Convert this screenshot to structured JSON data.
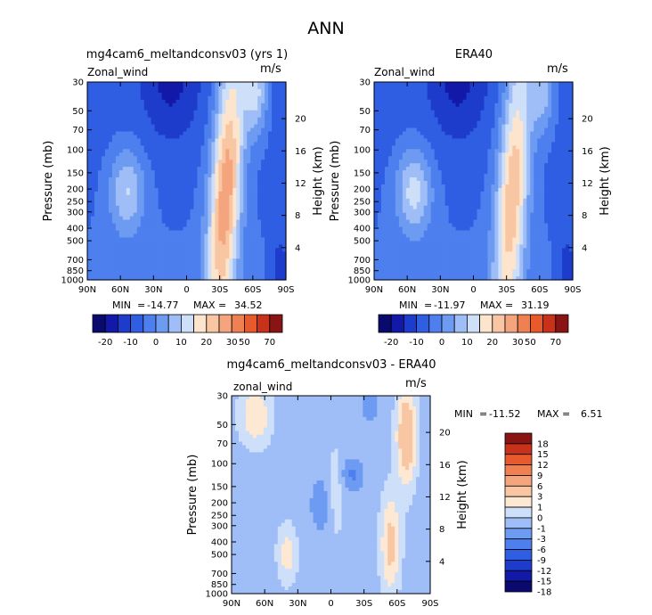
{
  "figure": {
    "main_title": "ANN",
    "min_label": "MIN",
    "max_label": "MAX"
  },
  "colors": {
    "abs_scale": [
      "#0a0a6e",
      "#1219a8",
      "#1e3ccc",
      "#2f5ee3",
      "#4d7fee",
      "#6e9bf2",
      "#9fbdf6",
      "#cddff9",
      "#fde4cc",
      "#f9c6a4",
      "#f5a57e",
      "#ef8051",
      "#e85a2b",
      "#c8321a",
      "#8a1414"
    ],
    "diff_scale": [
      "#0a0a6e",
      "#1219a8",
      "#1e3ccc",
      "#2f5ee3",
      "#4d7fee",
      "#6e9bf2",
      "#9fbdf6",
      "#cddff9",
      "#fde8d3",
      "#f9c6a4",
      "#f5a57e",
      "#ef8051",
      "#e85a2b",
      "#c8321a",
      "#8a1414"
    ]
  },
  "abs_colorbar": {
    "labels": [
      "-20",
      "-10",
      "0",
      "10",
      "20",
      "30",
      "50",
      "70"
    ]
  },
  "diff_colorbar": {
    "labels": [
      "18",
      "15",
      "12",
      "9",
      "6",
      "3",
      "1",
      "0",
      "-1",
      "-3",
      "-6",
      "-9",
      "-12",
      "-15",
      "-18"
    ]
  },
  "chart_data": [
    {
      "type": "heatmap",
      "title": "mg4cam6_meltandconsv03 (yrs 1)",
      "panel_label": "Zonal_wind",
      "units": "m/s",
      "ylabel": "Pressure (mb)",
      "y2label": "Height (km)",
      "x_ticks": [
        "90N",
        "60N",
        "30N",
        "0",
        "30S",
        "60S",
        "90S"
      ],
      "y_ticks": [
        "30",
        "50",
        "70",
        "100",
        "150",
        "200",
        "250",
        "300",
        "400",
        "500",
        "700",
        "850",
        "1000"
      ],
      "y2_ticks": [
        "20",
        "16",
        "12",
        "8",
        "4"
      ],
      "min": "-14.77",
      "max": "34.52",
      "stats_min_text": "-14.77",
      "stats_max_text": "34.52",
      "x_dir": "90N to 90S",
      "y_axis": "log pressure, 30 to 1000 mb"
    },
    {
      "type": "heatmap",
      "title": "ERA40",
      "panel_label": "Zonal_wind",
      "units": "m/s",
      "ylabel": "Pressure (mb)",
      "y2label": "Height (km)",
      "x_ticks": [
        "90N",
        "60N",
        "30N",
        "0",
        "30S",
        "60S",
        "90S"
      ],
      "y_ticks": [
        "30",
        "50",
        "70",
        "100",
        "150",
        "200",
        "250",
        "300",
        "400",
        "500",
        "700",
        "850",
        "1000"
      ],
      "y2_ticks": [
        "20",
        "16",
        "12",
        "8",
        "4"
      ],
      "min": "-11.97",
      "max": "31.19",
      "stats_min_text": "-11.97",
      "stats_max_text": "31.19"
    },
    {
      "type": "heatmap",
      "title": "mg4cam6_meltandconsv03 - ERA40",
      "panel_label": "zonal_wind",
      "units": "m/s",
      "ylabel": "Pressure (mb)",
      "y2label": "Height (km)",
      "x_ticks": [
        "90N",
        "60N",
        "30N",
        "0",
        "30S",
        "60S",
        "90S"
      ],
      "y_ticks": [
        "30",
        "50",
        "70",
        "100",
        "150",
        "200",
        "250",
        "300",
        "400",
        "500",
        "700",
        "850",
        "1000"
      ],
      "y2_ticks": [
        "20",
        "16",
        "12",
        "8",
        "4"
      ],
      "min": "-11.52",
      "max": "6.51",
      "stats_min_text": "-11.52",
      "stats_max_text": "6.51"
    }
  ]
}
